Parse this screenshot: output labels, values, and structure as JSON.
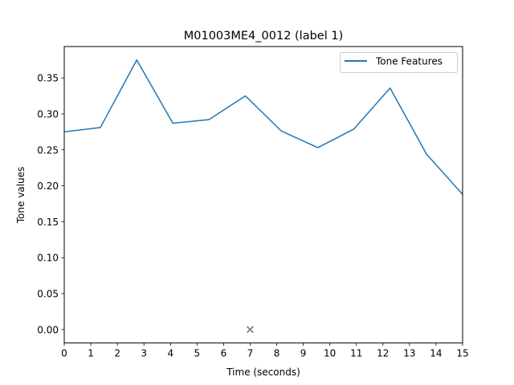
{
  "chart_data": {
    "type": "line",
    "title": "M01003ME4_0012 (label 1)",
    "xlabel": "Time (seconds)",
    "ylabel": "Tone values",
    "xlim": [
      0,
      15
    ],
    "ylim": [
      -0.0187,
      0.3937
    ],
    "xticks": [
      0,
      1,
      2,
      3,
      4,
      5,
      6,
      7,
      8,
      9,
      10,
      11,
      12,
      13,
      14,
      15
    ],
    "yticks": [
      0.0,
      0.05,
      0.1,
      0.15,
      0.2,
      0.25,
      0.3,
      0.35
    ],
    "grid": false,
    "legend_position": "top-right",
    "series": [
      {
        "name": "Tone Features",
        "color": "#1f77b4",
        "x": [
          0.0,
          1.36,
          2.73,
          4.09,
          5.45,
          6.82,
          8.18,
          9.55,
          10.91,
          12.27,
          13.64,
          15.0
        ],
        "y": [
          0.275,
          0.281,
          0.375,
          0.287,
          0.292,
          0.325,
          0.276,
          0.253,
          0.279,
          0.336,
          0.244,
          0.188
        ]
      }
    ],
    "markers": [
      {
        "shape": "x",
        "color": "#808080",
        "x": 7.0,
        "y": 0.0
      }
    ]
  }
}
